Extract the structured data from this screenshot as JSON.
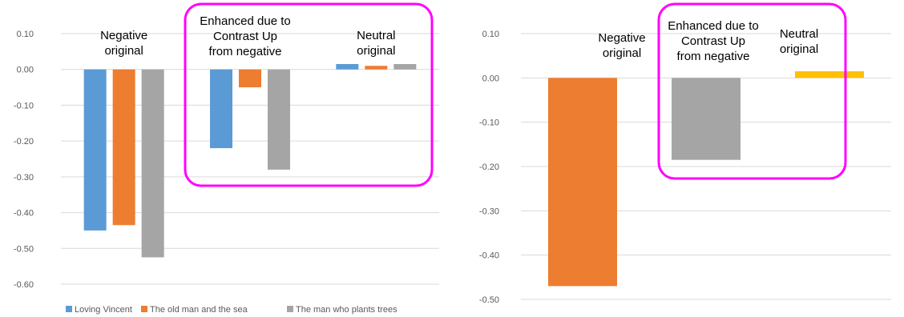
{
  "colors": {
    "blue": "#5b9bd5",
    "orange": "#ed7d31",
    "gray": "#a5a5a5",
    "yellow": "#ffc000",
    "highlight": "#ff00ff",
    "grid": "#d9d9d9",
    "tick": "#595959"
  },
  "chart_data": [
    {
      "type": "bar",
      "title": "",
      "xlabel": "",
      "ylabel": "",
      "ylim": [
        -0.6,
        0.1
      ],
      "yticks": [
        "0.10",
        "0.00",
        "-0.10",
        "-0.20",
        "-0.30",
        "-0.40",
        "-0.50",
        "-0.60"
      ],
      "grid": true,
      "legend_position": "bottom",
      "categories": [
        "Negative original",
        "Enhanced due to Contrast Up from negative",
        "Neutral original"
      ],
      "category_labels": [
        [
          "Negative",
          "original"
        ],
        [
          "Enhanced  due to",
          "Contrast Up",
          "from negative"
        ],
        [
          "Neutral",
          "original"
        ]
      ],
      "highlighted_category": 1,
      "series": [
        {
          "name": "Loving Vincent",
          "color": "blue",
          "values": [
            -0.45,
            -0.22,
            0.015
          ]
        },
        {
          "name": "The old man and  the sea",
          "color": "orange",
          "values": [
            -0.435,
            -0.05,
            0.01
          ]
        },
        {
          "name": "The man who plants trees",
          "color": "gray",
          "values": [
            -0.525,
            -0.28,
            0.015
          ]
        }
      ]
    },
    {
      "type": "bar",
      "title": "",
      "xlabel": "",
      "ylabel": "",
      "ylim": [
        -0.5,
        0.1
      ],
      "yticks": [
        "0.10",
        "0.00",
        "-0.10",
        "-0.20",
        "-0.30",
        "-0.40",
        "-0.50"
      ],
      "grid": true,
      "categories": [
        "Negative original",
        "Enhanced due to Contrast Up from negative",
        "Neutral original"
      ],
      "category_labels": [
        [
          "Negative",
          "original"
        ],
        [
          "Enhanced  due to",
          "Contrast Up",
          "from negative"
        ],
        [
          "Neutral",
          "original"
        ]
      ],
      "highlighted_category": 1,
      "values": [
        -0.47,
        -0.185,
        0.015
      ],
      "bar_colors": [
        "orange",
        "gray",
        "yellow"
      ]
    }
  ]
}
